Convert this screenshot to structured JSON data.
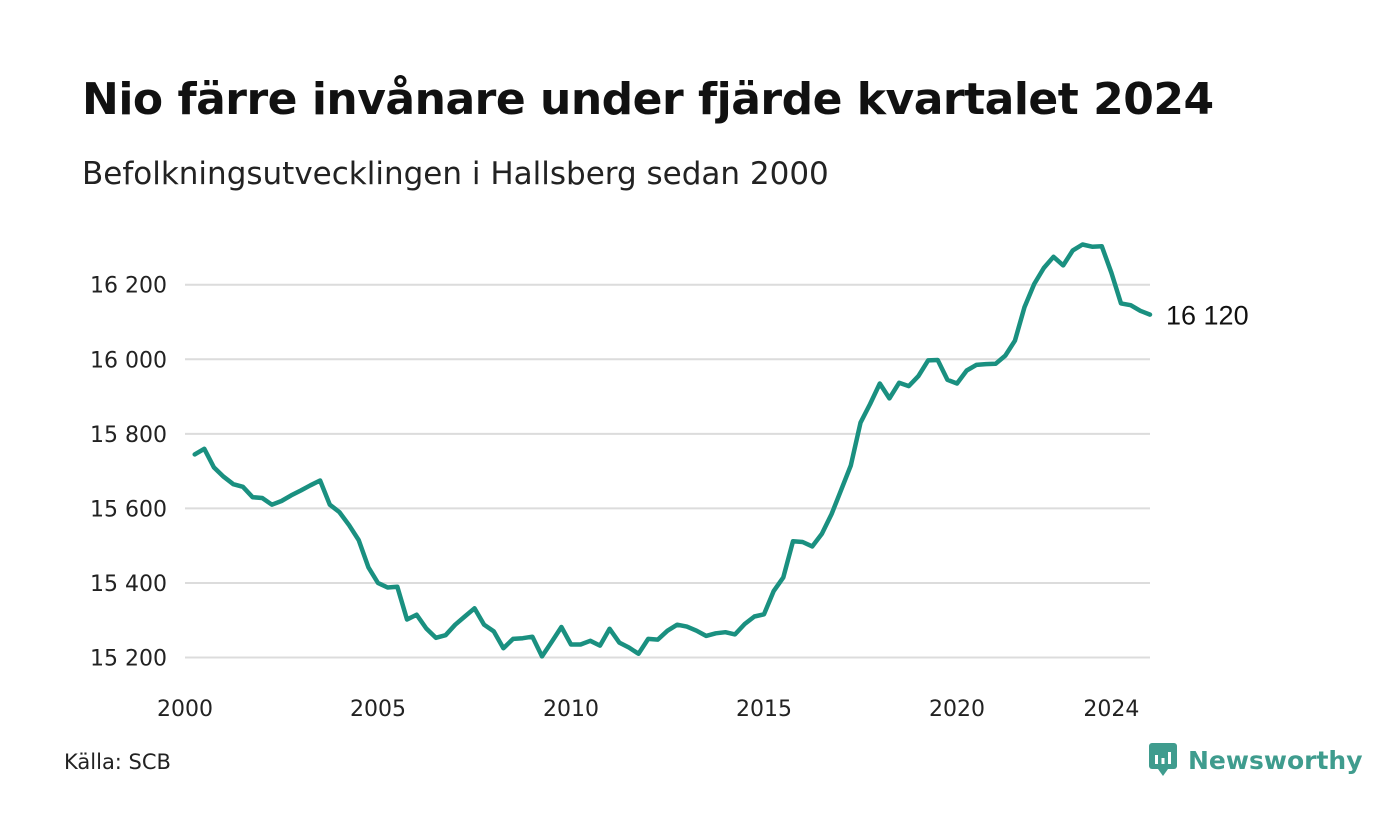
{
  "title": "Nio färre invånare under fjärde kvartalet 2024",
  "subtitle": "Befolkningsutvecklingen i Hallsberg sedan 2000",
  "source": "Källa: SCB",
  "brand": {
    "name": "Newsworthy",
    "color": "#3f9c8e"
  },
  "chart_data": {
    "type": "line",
    "line_color": "#1a9080",
    "grid": true,
    "ylim": [
      15180,
      16320
    ],
    "xlim": [
      2000,
      2025
    ],
    "y_ticks": [
      {
        "value": 15200,
        "label": "15 200"
      },
      {
        "value": 15400,
        "label": "15 400"
      },
      {
        "value": 15600,
        "label": "15 600"
      },
      {
        "value": 15800,
        "label": "15 800"
      },
      {
        "value": 16000,
        "label": "16 000"
      },
      {
        "value": 16200,
        "label": "16 200"
      }
    ],
    "x_ticks": [
      {
        "value": 2000,
        "label": "2000"
      },
      {
        "value": 2005,
        "label": "2005"
      },
      {
        "value": 2010,
        "label": "2010"
      },
      {
        "value": 2015,
        "label": "2015"
      },
      {
        "value": 2020,
        "label": "2020"
      },
      {
        "value": 2024,
        "label": "2024"
      }
    ],
    "end_label": "16 120",
    "series": [
      {
        "x": [
          2000.25,
          2000.5,
          2000.75,
          2001.0,
          2001.25,
          2001.5,
          2001.75,
          2002.0,
          2002.25,
          2002.5,
          2002.75,
          2003.0,
          2003.25,
          2003.5,
          2003.75,
          2004.0,
          2004.25,
          2004.5,
          2004.75,
          2005.0,
          2005.25,
          2005.5,
          2005.75,
          2006.0,
          2006.25,
          2006.5,
          2006.75,
          2007.0,
          2007.25,
          2007.5,
          2007.75,
          2008.0,
          2008.25,
          2008.5,
          2008.75,
          2009.0,
          2009.25,
          2009.5,
          2009.75,
          2010.0,
          2010.25,
          2010.5,
          2010.75,
          2011.0,
          2011.25,
          2011.5,
          2011.75,
          2012.0,
          2012.25,
          2012.5,
          2012.75,
          2013.0,
          2013.25,
          2013.5,
          2013.75,
          2014.0,
          2014.25,
          2014.5,
          2014.75,
          2015.0,
          2015.25,
          2015.5,
          2015.75,
          2016.0,
          2016.25,
          2016.5,
          2016.75,
          2017.0,
          2017.25,
          2017.5,
          2017.75,
          2018.0,
          2018.25,
          2018.5,
          2018.75,
          2019.0,
          2019.25,
          2019.5,
          2019.75,
          2020.0,
          2020.25,
          2020.5,
          2020.75,
          2021.0,
          2021.25,
          2021.5,
          2021.75,
          2022.0,
          2022.25,
          2022.5,
          2022.75,
          2023.0,
          2023.25,
          2023.5,
          2023.75,
          2024.0,
          2024.25,
          2024.5,
          2024.75,
          2025.0
        ],
        "y": [
          15745,
          15760,
          15710,
          15685,
          15665,
          15658,
          15630,
          15628,
          15610,
          15620,
          15635,
          15648,
          15662,
          15675,
          15610,
          15590,
          15555,
          15515,
          15442,
          15400,
          15388,
          15390,
          15302,
          15315,
          15278,
          15253,
          15260,
          15288,
          15310,
          15332,
          15288,
          15270,
          15225,
          15250,
          15252,
          15256,
          15203,
          15242,
          15282,
          15235,
          15235,
          15245,
          15232,
          15277,
          15240,
          15227,
          15210,
          15250,
          15248,
          15272,
          15288,
          15283,
          15272,
          15258,
          15265,
          15268,
          15262,
          15290,
          15310,
          15316,
          15378,
          15415,
          15512,
          15510,
          15498,
          15532,
          15585,
          15650,
          15715,
          15830,
          15880,
          15935,
          15895,
          15937,
          15928,
          15955,
          15997,
          15998,
          15945,
          15935,
          15970,
          15985,
          15987,
          15988,
          16010,
          16050,
          16140,
          16202,
          16245,
          16275,
          16252,
          16292,
          16308,
          16302,
          16303,
          16232,
          16150,
          16145,
          16130,
          16120
        ]
      }
    ]
  }
}
